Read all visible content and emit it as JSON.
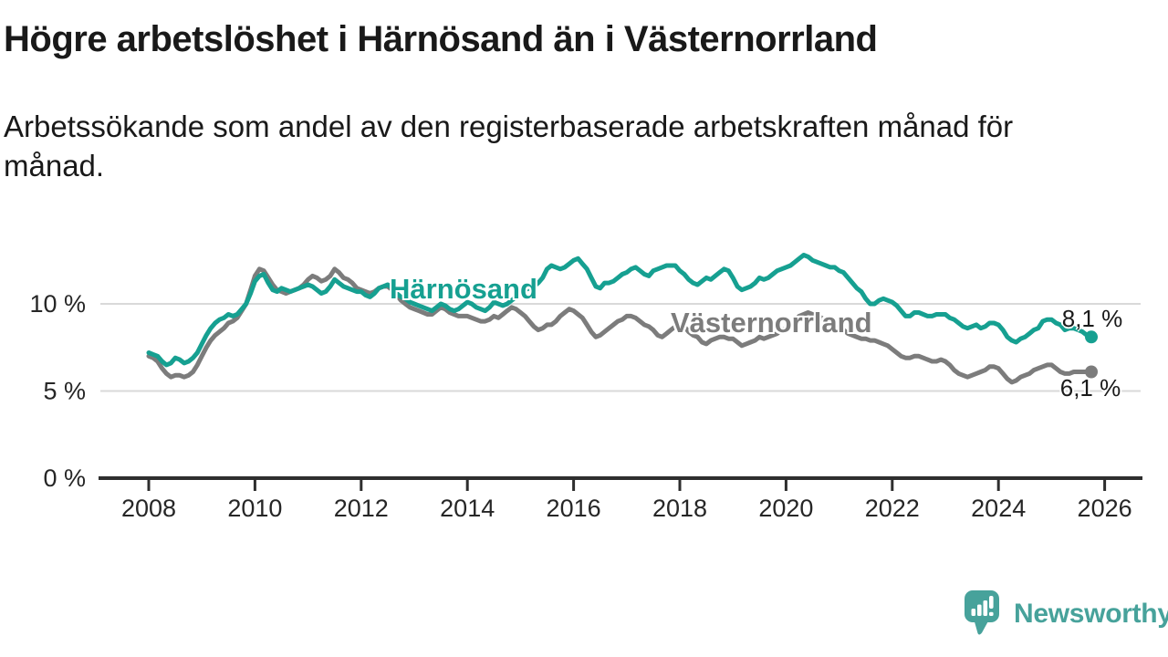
{
  "title": "Högre arbetslöshet i Härnösand än i Västernorrland",
  "subtitle_lines": [
    "Arbetssökande som andel av den registerbaserade arbetskraften månad för",
    "månad."
  ],
  "colors": {
    "harnosand": "#16a091",
    "vasternorrland": "#7c7c7c",
    "grid": "#d9d9d9",
    "axis": "#2e2e2e",
    "tick_text": "#262626",
    "title_text": "#191919",
    "brand_teal": "#47a29b"
  },
  "footer": {
    "brand": "Newsworthy",
    "logo_icon": "speech-bubble-bar-chart-icon"
  },
  "chart_data": {
    "type": "line",
    "title": "Högre arbetslöshet i Härnösand än i Västernorrland",
    "subtitle": "Arbetssökande som andel av den registerbaserade arbetskraften månad för månad.",
    "x_unit": "year",
    "y_unit": "percent",
    "frequency": "monthly",
    "x_start_year": 2008.0,
    "points_per_year": 12,
    "x_range_end": "2025-10",
    "grid": "horizontal",
    "ylim": [
      0,
      13.3
    ],
    "x_ticks": [
      2008,
      2010,
      2012,
      2014,
      2016,
      2018,
      2020,
      2022,
      2024,
      2026
    ],
    "y_ticks": [
      {
        "value": 10,
        "label": "10 %"
      },
      {
        "value": 5,
        "label": "5 %"
      },
      {
        "value": 0,
        "label": "0 %"
      }
    ],
    "series": [
      {
        "name": "Härnösand",
        "color": "#16a091",
        "end_label": "8,1 %",
        "end_value": 8.1,
        "values": [
          7.2,
          7.1,
          7.0,
          6.7,
          6.5,
          6.6,
          6.9,
          6.8,
          6.6,
          6.7,
          6.9,
          7.2,
          7.7,
          8.2,
          8.6,
          8.9,
          9.1,
          9.2,
          9.4,
          9.3,
          9.4,
          9.7,
          10.0,
          10.6,
          11.3,
          11.6,
          11.7,
          11.2,
          10.8,
          10.7,
          10.9,
          10.8,
          10.7,
          10.8,
          10.9,
          11.0,
          11.1,
          11.0,
          10.8,
          10.6,
          10.7,
          11.0,
          11.4,
          11.2,
          11.0,
          10.9,
          10.8,
          10.7,
          10.7,
          10.5,
          10.4,
          10.6,
          10.9,
          11.0,
          11.1,
          10.9,
          10.6,
          10.4,
          10.3,
          10.1,
          10.0,
          9.9,
          9.8,
          9.7,
          9.6,
          9.8,
          10.0,
          9.9,
          9.7,
          9.6,
          9.7,
          9.9,
          10.1,
          10.0,
          9.8,
          9.7,
          9.6,
          9.8,
          10.1,
          10.0,
          9.9,
          10.0,
          10.2,
          10.4,
          10.6,
          10.8,
          10.9,
          11.0,
          11.2,
          11.5,
          12.0,
          12.2,
          12.1,
          12.0,
          12.1,
          12.3,
          12.5,
          12.6,
          12.3,
          12.0,
          11.5,
          11.0,
          10.9,
          11.2,
          11.2,
          11.3,
          11.5,
          11.7,
          11.8,
          12.0,
          12.1,
          11.9,
          11.7,
          11.6,
          11.9,
          12.0,
          12.1,
          12.2,
          12.2,
          12.2,
          11.9,
          11.7,
          11.4,
          11.2,
          11.1,
          11.3,
          11.5,
          11.4,
          11.6,
          11.8,
          12.0,
          11.9,
          11.5,
          11.0,
          10.8,
          10.9,
          11.0,
          11.2,
          11.5,
          11.4,
          11.5,
          11.7,
          11.9,
          12.0,
          12.1,
          12.2,
          12.4,
          12.6,
          12.8,
          12.7,
          12.5,
          12.4,
          12.3,
          12.2,
          12.1,
          12.1,
          11.9,
          11.8,
          11.5,
          11.2,
          10.9,
          10.7,
          10.3,
          10.0,
          10.0,
          10.2,
          10.3,
          10.2,
          10.1,
          9.9,
          9.6,
          9.3,
          9.3,
          9.5,
          9.5,
          9.4,
          9.3,
          9.3,
          9.4,
          9.4,
          9.4,
          9.2,
          9.1,
          8.9,
          8.7,
          8.6,
          8.7,
          8.8,
          8.6,
          8.7,
          8.9,
          8.9,
          8.8,
          8.5,
          8.1,
          7.9,
          7.8,
          8.0,
          8.1,
          8.3,
          8.5,
          8.6,
          9.0,
          9.1,
          9.1,
          8.9,
          8.8,
          8.5,
          8.6,
          8.6,
          8.5,
          8.4,
          8.2,
          8.1
        ]
      },
      {
        "name": "Västernorrland",
        "color": "#7c7c7c",
        "end_label": "6,1 %",
        "end_value": 6.1,
        "values": [
          7.0,
          6.9,
          6.7,
          6.3,
          6.0,
          5.8,
          5.9,
          5.9,
          5.8,
          5.9,
          6.1,
          6.5,
          7.0,
          7.5,
          7.9,
          8.2,
          8.4,
          8.6,
          8.9,
          9.0,
          9.2,
          9.6,
          10.0,
          10.8,
          11.6,
          12.0,
          11.9,
          11.5,
          11.1,
          10.8,
          10.7,
          10.6,
          10.7,
          10.8,
          10.9,
          11.1,
          11.4,
          11.6,
          11.5,
          11.3,
          11.4,
          11.6,
          12.0,
          11.8,
          11.5,
          11.4,
          11.2,
          10.9,
          10.8,
          10.7,
          10.6,
          10.7,
          10.9,
          11.0,
          11.0,
          10.8,
          10.5,
          10.2,
          10.0,
          9.8,
          9.7,
          9.6,
          9.5,
          9.4,
          9.4,
          9.6,
          9.8,
          9.7,
          9.5,
          9.4,
          9.3,
          9.3,
          9.3,
          9.2,
          9.1,
          9.0,
          9.0,
          9.1,
          9.3,
          9.2,
          9.4,
          9.6,
          9.8,
          9.7,
          9.5,
          9.3,
          9.0,
          8.7,
          8.5,
          8.6,
          8.8,
          8.8,
          9.0,
          9.3,
          9.5,
          9.7,
          9.6,
          9.4,
          9.2,
          8.8,
          8.4,
          8.1,
          8.2,
          8.4,
          8.6,
          8.8,
          9.0,
          9.1,
          9.3,
          9.3,
          9.2,
          9.0,
          8.8,
          8.7,
          8.5,
          8.2,
          8.1,
          8.3,
          8.5,
          8.7,
          8.9,
          8.7,
          8.4,
          8.2,
          8.1,
          7.8,
          7.7,
          7.9,
          8.0,
          8.1,
          8.1,
          8.0,
          8.0,
          7.8,
          7.6,
          7.7,
          7.8,
          7.9,
          8.1,
          8.0,
          8.1,
          8.2,
          8.3,
          8.5,
          8.6,
          8.7,
          9.0,
          9.3,
          9.4,
          9.5,
          9.4,
          9.3,
          9.2,
          9.0,
          8.8,
          8.7,
          8.6,
          8.5,
          8.3,
          8.2,
          8.1,
          8.0,
          8.0,
          7.9,
          7.9,
          7.8,
          7.7,
          7.6,
          7.4,
          7.2,
          7.0,
          6.9,
          6.9,
          7.0,
          7.0,
          6.9,
          6.8,
          6.7,
          6.7,
          6.8,
          6.7,
          6.5,
          6.2,
          6.0,
          5.9,
          5.8,
          5.9,
          6.0,
          6.1,
          6.2,
          6.4,
          6.4,
          6.3,
          6.0,
          5.7,
          5.5,
          5.6,
          5.8,
          5.9,
          6.0,
          6.2,
          6.3,
          6.4,
          6.5,
          6.5,
          6.3,
          6.1,
          6.0,
          6.0,
          6.1,
          6.1,
          6.1,
          6.1,
          6.1
        ]
      }
    ]
  }
}
